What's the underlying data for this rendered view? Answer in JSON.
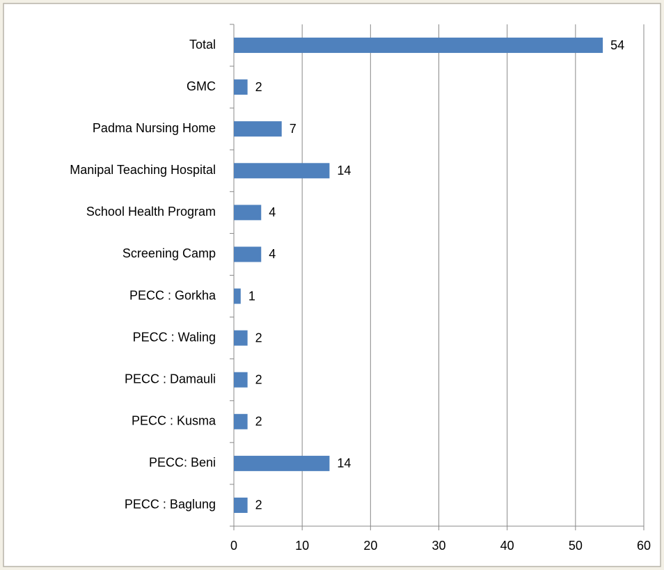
{
  "chart_data": {
    "type": "bar",
    "orientation": "horizontal",
    "categories": [
      "Total",
      "GMC",
      "Padma Nursing Home",
      "Manipal Teaching Hospital",
      "School Health Program",
      "Screening Camp",
      "PECC : Gorkha",
      "PECC : Waling",
      "PECC : Damauli",
      "PECC : Kusma",
      "PECC: Beni",
      "PECC : Baglung"
    ],
    "values": [
      54,
      2,
      7,
      14,
      4,
      4,
      1,
      2,
      2,
      2,
      14,
      2
    ],
    "color": "#4f81bd",
    "xlim": [
      0,
      60
    ],
    "xticks": [
      0,
      10,
      20,
      30,
      40,
      50,
      60
    ],
    "grid": true
  }
}
